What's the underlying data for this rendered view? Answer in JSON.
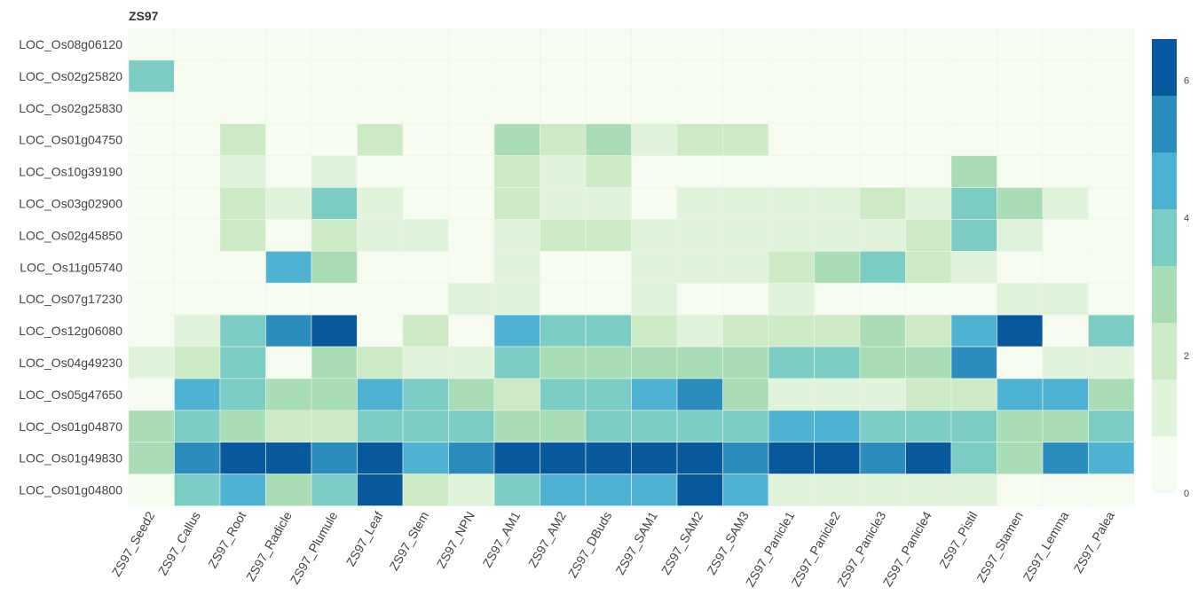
{
  "chart_data": {
    "type": "heatmap",
    "title": "ZS97",
    "xlabel": "",
    "ylabel": "",
    "x_categories": [
      "ZS97_Seed2",
      "ZS97_Callus",
      "ZS97_Root",
      "ZS97_Radicle",
      "ZS97_Plumule",
      "ZS97_Leaf",
      "ZS97_Stem",
      "ZS97_NPN",
      "ZS97_AM1",
      "ZS97_AM2",
      "ZS97_DBuds",
      "ZS97_SAM1",
      "ZS97_SAM2",
      "ZS97_SAM3",
      "ZS97_Panicle1",
      "ZS97_Panicle2",
      "ZS97_Panicle3",
      "ZS97_Panicle4",
      "ZS97_Pistil",
      "ZS97_Stamen",
      "ZS97_Lemma",
      "ZS97_Palea"
    ],
    "y_categories": [
      "LOC_Os08g06120",
      "LOC_Os02g25820",
      "LOC_Os02g25830",
      "LOC_Os01g04750",
      "LOC_Os10g39190",
      "LOC_Os03g02900",
      "LOC_Os02g45850",
      "LOC_Os11g05740",
      "LOC_Os07g17230",
      "LOC_Os12g06080",
      "LOC_Os04g49230",
      "LOC_Os05g47650",
      "LOC_Os01g04870",
      "LOC_Os01g49830",
      "LOC_Os01g04800"
    ],
    "z": [
      [
        0,
        0,
        0,
        0,
        0,
        0,
        0,
        0,
        0,
        0,
        0,
        0,
        0,
        0,
        0,
        0,
        0,
        0,
        0,
        0,
        0,
        0
      ],
      [
        3.8,
        0,
        0,
        0,
        0,
        0,
        0,
        0,
        0,
        0,
        0,
        0,
        0,
        0,
        0,
        0,
        0,
        0,
        0,
        0,
        0,
        0
      ],
      [
        0,
        0,
        0,
        0,
        0,
        0,
        0,
        0,
        0,
        0,
        0,
        0,
        0,
        0,
        0,
        0,
        0,
        0,
        0,
        0,
        0,
        0
      ],
      [
        0,
        0,
        2.2,
        0,
        0,
        2.2,
        0,
        0,
        3,
        2.4,
        3,
        1.6,
        2.2,
        2.2,
        0,
        0,
        0,
        0,
        0,
        0,
        0,
        0
      ],
      [
        0,
        0,
        1.5,
        0,
        1.5,
        0,
        0,
        0,
        2.2,
        1.5,
        2.3,
        0,
        0,
        0,
        0,
        0,
        0,
        0,
        3,
        0,
        0,
        0
      ],
      [
        0,
        0,
        2.2,
        1.5,
        3.8,
        1.5,
        0,
        0,
        2.2,
        1.5,
        1.5,
        0,
        1.5,
        1.5,
        1.5,
        1.5,
        2.2,
        1.5,
        3.8,
        3,
        1.5,
        0
      ],
      [
        0,
        0,
        2.2,
        0,
        2.2,
        1.5,
        1.5,
        0,
        1.5,
        2.2,
        2.2,
        1.5,
        1.5,
        1.5,
        1.5,
        1.5,
        1.5,
        2.2,
        3.8,
        1.5,
        0,
        0
      ],
      [
        0,
        0,
        0,
        4.6,
        3,
        0,
        0,
        0,
        1.5,
        0,
        0,
        1.5,
        1.5,
        1.5,
        2.2,
        3,
        3.8,
        2.2,
        1.5,
        0,
        0,
        0
      ],
      [
        0,
        0,
        0,
        0,
        0,
        0,
        0,
        1.5,
        1.5,
        0,
        0,
        1.5,
        0,
        0,
        1.5,
        0,
        0,
        0,
        0,
        1.5,
        1.5,
        0
      ],
      [
        0,
        1.5,
        3.8,
        5.4,
        6.3,
        0,
        2.2,
        0,
        4.6,
        3.8,
        3.8,
        2.2,
        1.5,
        2.2,
        2.2,
        2.2,
        3,
        2.2,
        4.6,
        6.3,
        0,
        3.8
      ],
      [
        1.5,
        2.2,
        3.8,
        0,
        3,
        2.2,
        1.5,
        1.5,
        3.8,
        3,
        3,
        3,
        3,
        3,
        3.8,
        3.8,
        3,
        3,
        5.4,
        0,
        1.5,
        1.5
      ],
      [
        0,
        4.6,
        3.8,
        3,
        3,
        4.6,
        3.8,
        3,
        2.2,
        3.8,
        3.8,
        4.6,
        5.4,
        3,
        1.5,
        1.5,
        1.5,
        2.2,
        2.2,
        4.6,
        4.6,
        3
      ],
      [
        3,
        3.8,
        3,
        2.2,
        2.2,
        3.8,
        3.8,
        3.8,
        3,
        3,
        3.8,
        3.8,
        3.8,
        3.8,
        4.6,
        4.6,
        3.8,
        3.8,
        3.8,
        3,
        3,
        3.8
      ],
      [
        3,
        5.4,
        6.3,
        6.3,
        5.4,
        6.3,
        4.6,
        5.4,
        6.3,
        6.3,
        6.3,
        6.3,
        6.3,
        5.4,
        6.3,
        6.3,
        5.4,
        6.3,
        3.8,
        3,
        5.4,
        4.6
      ],
      [
        0,
        3.8,
        4.6,
        3,
        3.8,
        6.3,
        2.2,
        1.5,
        3.8,
        4.6,
        4.6,
        4.6,
        6.3,
        4.6,
        1.5,
        1.5,
        1.5,
        1.5,
        1.5,
        0,
        0,
        0
      ]
    ],
    "zlim": [
      0,
      6.6
    ],
    "colorbar_ticks": [
      0,
      2,
      4,
      6
    ],
    "colorscale": [
      "#f7fcf0",
      "#e0f3db",
      "#ccebc5",
      "#a8ddb5",
      "#7bccc4",
      "#4eb3d3",
      "#2b8cbe",
      "#08589e"
    ],
    "colorbar_position": "right"
  }
}
